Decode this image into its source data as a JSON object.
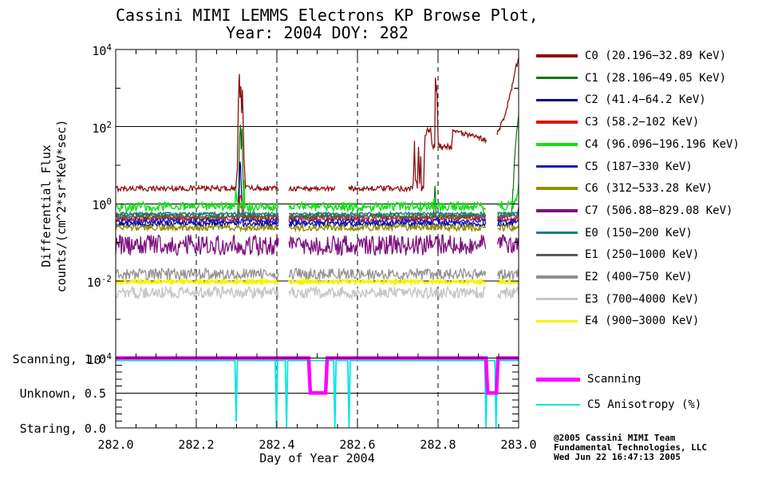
{
  "title": {
    "line1": "Cassini MIMI LEMMS Electrons KP Browse Plot,",
    "line2": "Year: 2004 DOY: 282"
  },
  "axes": {
    "x": {
      "label": "Day of Year 2004",
      "min": 282.0,
      "max": 283.0,
      "major_step": 0.2,
      "minor_step": 0.05,
      "tick_labels": [
        "282.0",
        "282.2",
        "282.4",
        "282.6",
        "282.8",
        "283.0"
      ]
    },
    "y_flux": {
      "label_line1": "Differential Flux",
      "label_line2": "counts/(cm^2*sr*KeV*sec)",
      "log_min": -4,
      "log_max": 4,
      "tick_exponents": [
        4,
        2,
        0,
        -2,
        -4
      ],
      "gridline_exponents": [
        2,
        0,
        -2
      ]
    },
    "y_mode": {
      "min": 0.0,
      "max": 1.0,
      "minor_step": 0.1,
      "gridline_values": [
        0.5
      ],
      "labels": [
        {
          "text": "Scanning, 1.0",
          "value": 1.0
        },
        {
          "text": "Unknown, 0.5",
          "value": 0.5
        },
        {
          "text": "Staring, 0.0",
          "value": 0.0
        }
      ]
    }
  },
  "legend": {
    "entries": [
      {
        "label": "C0 (20.196−32.89 KeV)",
        "color": "#8F1010"
      },
      {
        "label": "C1 (28.106−49.05 KeV)",
        "color": "#087808"
      },
      {
        "label": "C2 (41.4−64.2 KeV)",
        "color": "#00008B"
      },
      {
        "label": "C3 (58.2−102 KeV)",
        "color": "#E01010"
      },
      {
        "label": "C4 (96.096−196.196 KeV)",
        "color": "#19DD19"
      },
      {
        "label": "C5 (187−330 KeV)",
        "color": "#1414CC"
      },
      {
        "label": "C6 (312−533.28 KeV)",
        "color": "#8F8F00"
      },
      {
        "label": "C7 (506.88−829.08 KeV)",
        "color": "#7D107D"
      },
      {
        "label": "E0 (150−200 KeV)",
        "color": "#0F8080"
      },
      {
        "label": "E1 (250−1000 KeV)",
        "color": "#5A5A5A"
      },
      {
        "label": "E2 (400−750 KeV)",
        "color": "#8F8F8F"
      },
      {
        "label": "E3 (700−4000 KeV)",
        "color": "#C6C6C6"
      },
      {
        "label": "E4 (900−3000 KeV)",
        "color": "#F5F500"
      }
    ]
  },
  "mode_legend": [
    {
      "label": "Scanning",
      "color": "#FF00FF",
      "thickness": 5
    },
    {
      "label": "C5 Anisotropy (%)",
      "color": "#00E5E5",
      "thickness": 2.5
    }
  ],
  "credit": [
    "@2005 Cassini MIMI Team",
    "Fundamental Technologies, LLC",
    "Wed Jun 22 16:47:13 2005"
  ],
  "chart_data": {
    "type": "line",
    "title": "Cassini MIMI LEMMS Electrons KP Browse Plot, Year: 2004 DOY: 282",
    "xlabel": "Day of Year 2004",
    "ylabel": "Differential Flux counts/(cm^2*sr*KeV*sec)",
    "x_range": [
      282.0,
      283.0
    ],
    "y_range_log": [
      0.0001,
      10000.0
    ],
    "grid": true,
    "legend_position": "right",
    "data_gaps": [
      [
        282.405,
        282.43
      ],
      [
        282.92,
        282.947
      ]
    ],
    "flux_series": [
      {
        "name": "C0",
        "energy_range": "20.196-32.89 KeV",
        "color": "#8F1010",
        "baseline": 2.5,
        "noise_dex": 0.07,
        "width": 1.3,
        "extra_gaps": [
          [
            282.545,
            282.578
          ]
        ],
        "keypoints": [
          [
            282.0,
            2.5
          ],
          [
            282.298,
            2.5
          ],
          [
            282.302,
            9
          ],
          [
            282.3045,
            400
          ],
          [
            282.307,
            2600
          ],
          [
            282.3085,
            500
          ],
          [
            282.3105,
            950
          ],
          [
            282.3125,
            260
          ],
          [
            282.3145,
            1000
          ],
          [
            282.3165,
            130
          ],
          [
            282.3185,
            16
          ],
          [
            282.322,
            2.6
          ],
          [
            282.43,
            2.5
          ],
          [
            282.736,
            2.5
          ],
          [
            282.7385,
            3.2
          ],
          [
            282.7415,
            38
          ],
          [
            282.744,
            4
          ],
          [
            282.7485,
            2.6
          ],
          [
            282.7515,
            30
          ],
          [
            282.754,
            3
          ],
          [
            282.757,
            18
          ],
          [
            282.759,
            2.5
          ],
          [
            282.764,
            2.6
          ],
          [
            282.7675,
            55
          ],
          [
            282.772,
            85
          ],
          [
            282.778,
            70
          ],
          [
            282.7815,
            90
          ],
          [
            282.7845,
            40
          ],
          [
            282.788,
            28
          ],
          [
            282.7915,
            33
          ],
          [
            282.7935,
            1900
          ],
          [
            282.7952,
            780
          ],
          [
            282.7967,
            1150
          ],
          [
            282.7985,
            250
          ],
          [
            282.8005,
            34
          ],
          [
            282.81,
            29
          ],
          [
            282.82,
            31
          ],
          [
            282.8335,
            30
          ],
          [
            282.8365,
            80
          ],
          [
            282.841,
            76
          ],
          [
            282.86,
            68
          ],
          [
            282.88,
            57
          ],
          [
            282.9,
            51
          ],
          [
            282.92,
            46
          ],
          [
            282.947,
            68
          ],
          [
            282.953,
            95
          ],
          [
            282.963,
            170
          ],
          [
            282.973,
            380
          ],
          [
            282.983,
            1000
          ],
          [
            282.991,
            2800
          ],
          [
            283.0,
            5600
          ]
        ]
      },
      {
        "name": "C1",
        "energy_range": "28.106-49.05 KeV",
        "color": "#087808",
        "baseline": 0.45,
        "noise_dex": 0.07,
        "width": 1.2,
        "keypoints": [
          [
            282.0,
            0.45
          ],
          [
            282.302,
            0.45
          ],
          [
            282.3055,
            3
          ],
          [
            282.3075,
            55
          ],
          [
            282.3095,
            130
          ],
          [
            282.3115,
            25
          ],
          [
            282.3135,
            95
          ],
          [
            282.3155,
            8
          ],
          [
            282.318,
            0.46
          ],
          [
            282.789,
            0.45
          ],
          [
            282.7925,
            3.2
          ],
          [
            282.7955,
            0.45
          ],
          [
            282.982,
            0.5
          ],
          [
            282.9865,
            2.5
          ],
          [
            282.99,
            15
          ],
          [
            282.9945,
            60
          ],
          [
            283.0,
            190
          ]
        ]
      },
      {
        "name": "C2",
        "energy_range": "41.4-64.2 KeV",
        "color": "#00008B",
        "baseline": 0.3,
        "noise_dex": 0.07,
        "width": 1.2,
        "keypoints": [
          [
            282.0,
            0.3
          ],
          [
            282.305,
            0.3
          ],
          [
            282.3085,
            14
          ],
          [
            282.3105,
            7
          ],
          [
            282.3135,
            0.9
          ],
          [
            282.316,
            0.3
          ],
          [
            282.984,
            0.3
          ],
          [
            282.992,
            0.35
          ],
          [
            283.0,
            0.78
          ]
        ]
      },
      {
        "name": "C3",
        "energy_range": "58.2-102 KeV",
        "color": "#E01010",
        "baseline": 0.4,
        "noise_dex": 0.07,
        "width": 1.2,
        "keypoints": [
          [
            282.0,
            0.4
          ],
          [
            282.305,
            0.4
          ],
          [
            282.3085,
            1.7
          ],
          [
            282.312,
            1.2
          ],
          [
            282.315,
            0.4
          ]
        ]
      },
      {
        "name": "C4",
        "energy_range": "96.096-196.196 KeV",
        "color": "#19DD19",
        "baseline": 0.85,
        "noise_dex": 0.12,
        "width": 1.5,
        "keypoints": [
          [
            282.0,
            0.85
          ],
          [
            282.296,
            0.85
          ],
          [
            282.2985,
            2.8
          ],
          [
            282.301,
            0.9
          ],
          [
            282.316,
            0.9
          ],
          [
            282.3185,
            3.2
          ],
          [
            282.321,
            0.85
          ],
          [
            282.7875,
            0.85
          ],
          [
            282.7905,
            1.7
          ],
          [
            282.7935,
            0.85
          ],
          [
            282.988,
            0.9
          ],
          [
            282.994,
            1.2
          ],
          [
            283.0,
            2.6
          ]
        ]
      },
      {
        "name": "C5",
        "energy_range": "187-330 KeV",
        "color": "#1414CC",
        "baseline": 0.35,
        "noise_dex": 0.07,
        "width": 1.2
      },
      {
        "name": "C6",
        "energy_range": "312-533.28 KeV",
        "color": "#8F8F00",
        "baseline": 0.24,
        "noise_dex": 0.08,
        "width": 1.4
      },
      {
        "name": "C7",
        "energy_range": "506.88-829.08 KeV",
        "color": "#7D107D",
        "baseline": 0.085,
        "noise_dex": 0.27,
        "width": 1.3
      },
      {
        "name": "E0",
        "energy_range": "150-200 KeV",
        "color": "#0F8080",
        "baseline": 0.55,
        "noise_dex": 0.04,
        "width": 1.5
      },
      {
        "name": "E1",
        "energy_range": "250-1000 KeV",
        "color": "#5A5A5A",
        "baseline": 0.48,
        "noise_dex": 0.05,
        "width": 1.4
      },
      {
        "name": "E2",
        "energy_range": "400-750 KeV",
        "color": "#8F8F8F",
        "baseline": 0.015,
        "noise_dex": 0.15,
        "width": 1.2
      },
      {
        "name": "E3",
        "energy_range": "700-4000 KeV",
        "color": "#C6C6C6",
        "baseline": 0.005,
        "noise_dex": 0.15,
        "width": 1.4
      },
      {
        "name": "E4",
        "energy_range": "900-3000 KeV",
        "color": "#F5F500",
        "baseline": 0.0095,
        "noise_dex": 0.04,
        "width": 2.6
      }
    ],
    "mode_series": {
      "scanning": {
        "label": "Scanning",
        "color": "#FF00FF",
        "width": 4.5,
        "keypoints": [
          [
            282.0,
            1.0
          ],
          [
            282.479,
            1.0
          ],
          [
            282.483,
            0.5
          ],
          [
            282.521,
            0.5
          ],
          [
            282.525,
            1.0
          ],
          [
            282.919,
            1.0
          ],
          [
            282.923,
            0.5
          ],
          [
            282.945,
            0.5
          ],
          [
            282.949,
            1.0
          ],
          [
            283.0,
            1.0
          ]
        ]
      },
      "anisotropy": {
        "label": "C5 Anisotropy (%)",
        "color": "#00E5E5",
        "width": 1.8,
        "keypoints": [
          [
            282.0,
            0.965
          ],
          [
            282.296,
            0.965
          ],
          [
            282.299,
            0.09
          ],
          [
            282.302,
            0.965
          ],
          [
            282.396,
            0.965
          ],
          [
            282.399,
            0.0
          ],
          [
            282.402,
            0.965
          ],
          [
            282.421,
            0.965
          ],
          [
            282.424,
            0.0
          ],
          [
            282.427,
            0.965
          ],
          [
            282.541,
            0.965
          ],
          [
            282.544,
            0.0
          ],
          [
            282.547,
            0.965
          ],
          [
            282.576,
            0.965
          ],
          [
            282.579,
            0.0
          ],
          [
            282.582,
            0.965
          ],
          [
            282.916,
            0.965
          ],
          [
            282.919,
            0.0
          ],
          [
            282.922,
            0.965
          ],
          [
            282.941,
            0.965
          ],
          [
            282.944,
            0.0
          ],
          [
            282.947,
            0.965
          ],
          [
            283.0,
            0.965
          ]
        ]
      }
    }
  }
}
